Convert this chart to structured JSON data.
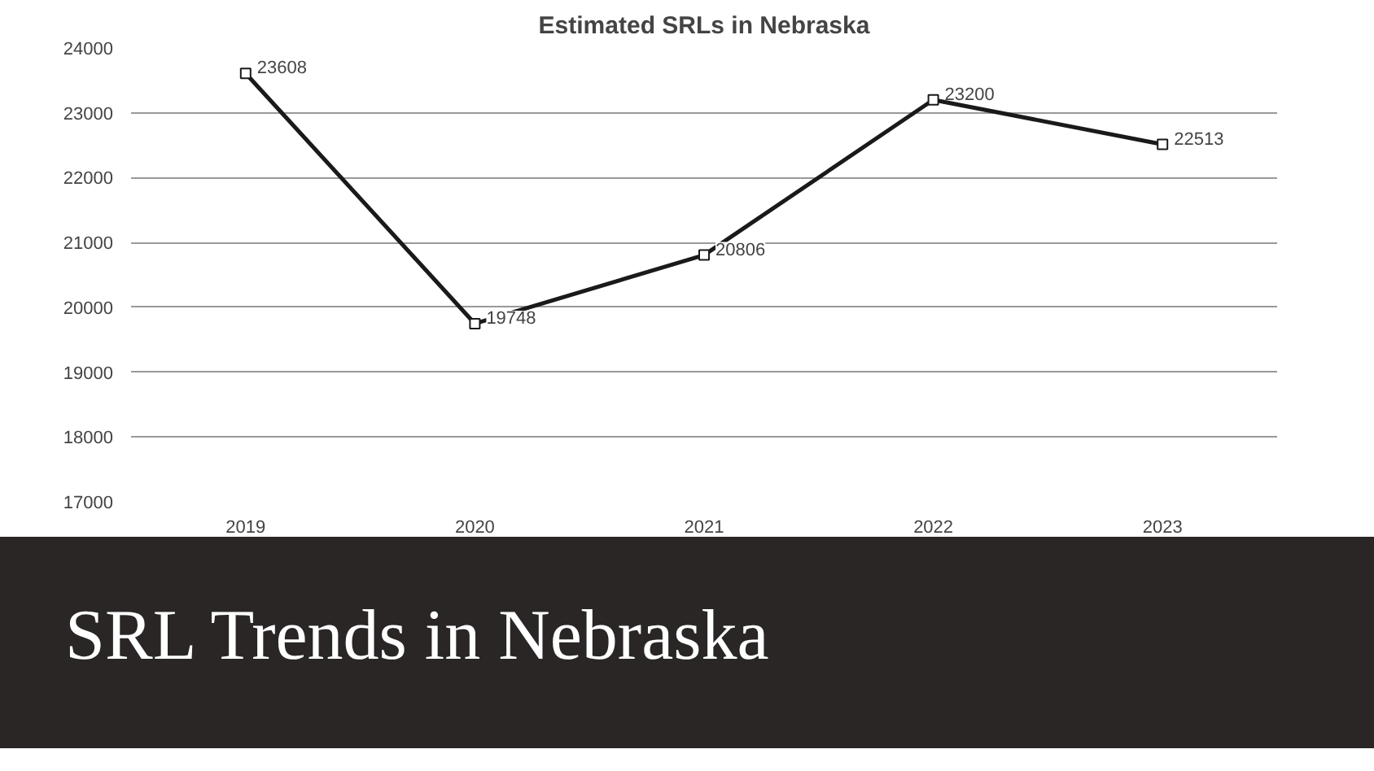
{
  "chart_data": {
    "type": "line",
    "title": "Estimated SRLs in Nebraska",
    "subtitle": "SRL Trends in Nebraska",
    "categories": [
      "2019",
      "2020",
      "2021",
      "2022",
      "2023"
    ],
    "series": [
      {
        "color": "#1a1a1a",
        "values": [
          23608,
          19748,
          20806,
          23200,
          22513
        ]
      }
    ],
    "ylim": [
      17000,
      24000
    ],
    "yticks": [
      17000,
      18000,
      19000,
      20000,
      21000,
      22000,
      23000,
      24000
    ],
    "grid": "y",
    "marker": "square",
    "line_style": "solid",
    "data_labels": true
  }
}
